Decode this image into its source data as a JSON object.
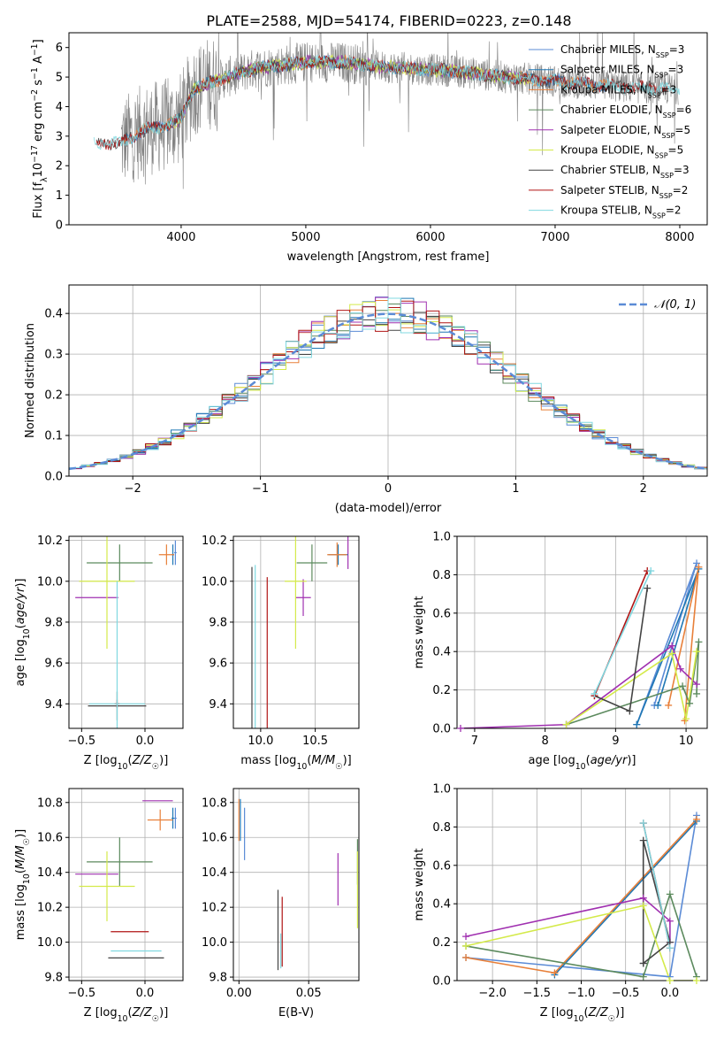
{
  "figure": {
    "title": "PLATE=2588, MJD=54174, FIBERID=0223, z=0.148"
  },
  "colors": {
    "chabrier_miles": "#5b8bd6",
    "salpeter_miles": "#1f77b4",
    "kroupa_miles": "#e8803a",
    "chabrier_elodie": "#5c8a5e",
    "salpeter_elodie": "#a030b0",
    "kroupa_elodie": "#d4ea4a",
    "chabrier_stelib": "#444444",
    "salpeter_stelib": "#b01515",
    "kroupa_stelib": "#80d8e0",
    "data_spectrum": "#808080",
    "normal_curve": "#5b8bd6",
    "grid": "#b0b0b0"
  },
  "chart_data": [
    {
      "id": "spectrum",
      "type": "line",
      "xlabel": "wavelength [Angstrom, rest frame]",
      "ylabel": "Flux [f_λ 10^-17 erg cm^-2 s^-1 A^-1]",
      "xlim": [
        3100,
        8220
      ],
      "ylim": [
        0,
        6.5
      ],
      "xticks": [
        4000,
        5000,
        6000,
        7000,
        8000
      ],
      "yticks": [
        0,
        1,
        2,
        3,
        4,
        5,
        6
      ],
      "grid": false,
      "legend_position": "top-right",
      "legend": [
        {
          "label": "Chabrier MILES, N_SSP=3",
          "color_key": "chabrier_miles"
        },
        {
          "label": "Salpeter MILES, N_SSP=3",
          "color_key": "salpeter_miles"
        },
        {
          "label": "Kroupa MILES, N_SSP=3",
          "color_key": "kroupa_miles"
        },
        {
          "label": "Chabrier ELODIE, N_SSP=6",
          "color_key": "chabrier_elodie"
        },
        {
          "label": "Salpeter ELODIE, N_SSP=5",
          "color_key": "salpeter_elodie"
        },
        {
          "label": "Kroupa ELODIE, N_SSP=5",
          "color_key": "kroupa_elodie"
        },
        {
          "label": "Chabrier STELIB, N_SSP=3",
          "color_key": "chabrier_stelib"
        },
        {
          "label": "Salpeter STELIB, N_SSP=2",
          "color_key": "salpeter_stelib"
        },
        {
          "label": "Kroupa STELIB, N_SSP=2",
          "color_key": "kroupa_stelib"
        }
      ],
      "continuum": [
        [
          3300,
          2.8
        ],
        [
          3500,
          2.75
        ],
        [
          3700,
          3.2
        ],
        [
          3900,
          3.4
        ],
        [
          4000,
          3.6
        ],
        [
          4100,
          4.6
        ],
        [
          4300,
          4.9
        ],
        [
          4600,
          5.3
        ],
        [
          4900,
          5.45
        ],
        [
          5000,
          5.5
        ],
        [
          5300,
          5.5
        ],
        [
          5600,
          5.35
        ],
        [
          5800,
          5.3
        ],
        [
          6200,
          5.2
        ],
        [
          6600,
          5.0
        ],
        [
          6900,
          4.9
        ],
        [
          7300,
          4.75
        ],
        [
          7600,
          4.65
        ],
        [
          8000,
          4.6
        ]
      ]
    },
    {
      "id": "residuals",
      "type": "histogram",
      "xlabel": "(data-model)/error",
      "ylabel": "Normed distribution",
      "xlim": [
        -2.5,
        2.5
      ],
      "ylim": [
        0,
        0.47
      ],
      "xticks": [
        -2,
        -1,
        0,
        1,
        2
      ],
      "yticks": [
        0.0,
        0.1,
        0.2,
        0.3,
        0.4
      ],
      "grid": true,
      "legend_position": "top-right",
      "legend": [
        {
          "label": "𝒩(0, 1)",
          "style": "dashed",
          "color_key": "normal_curve"
        }
      ],
      "bin_width": 0.1,
      "curve": "normal pdf, mean 0, sd 1"
    },
    {
      "id": "age_vs_Z",
      "type": "errorbar",
      "xlabel": "Z [log10(Z/Z☉)]",
      "ylabel": "age [log10(age/yr)]",
      "xlim": [
        -0.6,
        0.3
      ],
      "ylim": [
        9.28,
        10.22
      ],
      "xticks": [
        -0.5,
        0.0
      ],
      "yticks": [
        9.4,
        9.6,
        9.8,
        10.0,
        10.2
      ],
      "grid": true,
      "points": [
        {
          "model": "chabrier_miles",
          "x": 0.24,
          "y": 10.14,
          "xerr": 0.01,
          "yerr": 0.06
        },
        {
          "model": "salpeter_miles",
          "x": 0.22,
          "y": 10.13,
          "xerr": 0.01,
          "yerr": 0.05
        },
        {
          "model": "kroupa_miles",
          "x": 0.17,
          "y": 10.13,
          "xerr": 0.06,
          "yerr": 0.05
        },
        {
          "model": "chabrier_elodie",
          "x": -0.2,
          "y": 10.09,
          "xerr": 0.26,
          "yerr": 0.09
        },
        {
          "model": "salpeter_elodie",
          "x": -0.38,
          "y": 9.92,
          "xerr": 0.17,
          "yerr": 0.0
        },
        {
          "model": "kroupa_elodie",
          "x": -0.3,
          "y": 10.0,
          "xerr": 0.22,
          "yerr": 0.33
        },
        {
          "model": "chabrier_stelib",
          "x": -0.22,
          "y": 9.39,
          "xerr": 0.23,
          "yerr": 0.07
        },
        {
          "model": "salpeter_stelib",
          "x": -0.22,
          "y": 9.4,
          "xerr": 0.02,
          "yerr": 0.02
        },
        {
          "model": "kroupa_stelib",
          "x": -0.22,
          "y": 9.4,
          "xerr": 0.22,
          "yerr": 0.6
        }
      ]
    },
    {
      "id": "age_vs_mass",
      "type": "errorbar",
      "xlabel": "mass [log10(M/M☉)]",
      "ylabel": "",
      "xlim": [
        9.75,
        10.9
      ],
      "ylim": [
        9.28,
        10.22
      ],
      "xticks": [
        10.0,
        10.5
      ],
      "yticks": [
        9.4,
        9.6,
        9.8,
        10.0,
        10.2
      ],
      "grid": true,
      "points": [
        {
          "model": "salpeter_elodie",
          "x": 10.8,
          "y": 10.14,
          "xerr": 0.0,
          "yerr": 0.08
        },
        {
          "model": "salpeter_miles",
          "x": 10.71,
          "y": 10.13,
          "xerr": 0.09,
          "yerr": 0.05
        },
        {
          "model": "kroupa_miles",
          "x": 10.7,
          "y": 10.13,
          "xerr": 0.09,
          "yerr": 0.06
        },
        {
          "model": "chabrier_elodie",
          "x": 10.47,
          "y": 10.09,
          "xerr": 0.14,
          "yerr": 0.09
        },
        {
          "model": "salpeter_elodie",
          "x": 10.39,
          "y": 9.92,
          "xerr": 0.07,
          "yerr": 0.09
        },
        {
          "model": "kroupa_elodie",
          "x": 10.32,
          "y": 10.0,
          "xerr": 0.1,
          "yerr": 0.33
        },
        {
          "model": "salpeter_stelib",
          "x": 10.06,
          "y": 9.4,
          "xerr": 0.0,
          "yerr": 0.62
        },
        {
          "model": "chabrier_stelib",
          "x": 9.92,
          "y": 9.39,
          "xerr": 0.0,
          "yerr": 0.68
        },
        {
          "model": "kroupa_stelib",
          "x": 9.95,
          "y": 9.4,
          "xerr": 0.0,
          "yerr": 0.68
        }
      ]
    },
    {
      "id": "weight_vs_age",
      "type": "line",
      "xlabel": "age [log10(age/yr)]",
      "ylabel": "mass weight",
      "xlim": [
        6.75,
        10.3
      ],
      "ylim": [
        0,
        1
      ],
      "xticks": [
        7,
        8,
        9,
        10
      ],
      "yticks": [
        0.0,
        0.2,
        0.4,
        0.6,
        0.8,
        1.0
      ],
      "grid": true,
      "series": [
        {
          "model": "chabrier_miles",
          "points": [
            [
              9.3,
              0.02
            ],
            [
              10.15,
              0.86
            ],
            [
              9.55,
              0.12
            ]
          ]
        },
        {
          "model": "salpeter_miles",
          "points": [
            [
              9.3,
              0.02
            ],
            [
              10.18,
              0.83
            ],
            [
              9.6,
              0.12
            ]
          ]
        },
        {
          "model": "kroupa_miles",
          "points": [
            [
              9.75,
              0.12
            ],
            [
              10.18,
              0.84
            ],
            [
              9.98,
              0.04
            ]
          ]
        },
        {
          "model": "chabrier_elodie",
          "points": [
            [
              8.3,
              0.02
            ],
            [
              9.95,
              0.22
            ],
            [
              10.05,
              0.13
            ],
            [
              10.18,
              0.45
            ],
            [
              10.15,
              0.18
            ]
          ]
        },
        {
          "model": "salpeter_elodie",
          "points": [
            [
              6.8,
              0.0
            ],
            [
              8.3,
              0.02
            ],
            [
              9.8,
              0.43
            ],
            [
              9.92,
              0.31
            ],
            [
              10.15,
              0.23
            ]
          ]
        },
        {
          "model": "kroupa_elodie",
          "points": [
            [
              8.3,
              0.02
            ],
            [
              9.8,
              0.39
            ],
            [
              10.0,
              0.05
            ],
            [
              10.15,
              0.4
            ]
          ]
        },
        {
          "model": "chabrier_stelib",
          "points": [
            [
              8.7,
              0.17
            ],
            [
              9.2,
              0.09
            ],
            [
              9.45,
              0.73
            ]
          ]
        },
        {
          "model": "salpeter_stelib",
          "points": [
            [
              8.7,
              0.17
            ],
            [
              9.45,
              0.82
            ]
          ]
        },
        {
          "model": "kroupa_stelib",
          "points": [
            [
              8.7,
              0.18
            ],
            [
              9.5,
              0.82
            ]
          ]
        }
      ]
    },
    {
      "id": "mass_vs_Z",
      "type": "errorbar",
      "xlabel": "Z [log10(Z/Z☉)]",
      "ylabel": "mass [log10(M/M☉)]",
      "xlim": [
        -0.6,
        0.3
      ],
      "ylim": [
        9.78,
        10.88
      ],
      "xticks": [
        -0.5,
        0.0
      ],
      "yticks": [
        9.8,
        10.0,
        10.2,
        10.4,
        10.6,
        10.8
      ],
      "grid": true,
      "points": [
        {
          "model": "salpeter_elodie",
          "x": 0.1,
          "y": 10.81,
          "xerr": 0.12,
          "yerr": 0.0
        },
        {
          "model": "chabrier_miles",
          "x": 0.24,
          "y": 10.71,
          "xerr": 0.01,
          "yerr": 0.06
        },
        {
          "model": "salpeter_miles",
          "x": 0.22,
          "y": 10.71,
          "xerr": 0.01,
          "yerr": 0.06
        },
        {
          "model": "kroupa_miles",
          "x": 0.12,
          "y": 10.7,
          "xerr": 0.1,
          "yerr": 0.06
        },
        {
          "model": "chabrier_elodie",
          "x": -0.2,
          "y": 10.46,
          "xerr": 0.26,
          "yerr": 0.14
        },
        {
          "model": "salpeter_elodie",
          "x": -0.38,
          "y": 10.39,
          "xerr": 0.17,
          "yerr": 0.0
        },
        {
          "model": "kroupa_elodie",
          "x": -0.3,
          "y": 10.32,
          "xerr": 0.22,
          "yerr": 0.2
        },
        {
          "model": "salpeter_stelib",
          "x": -0.12,
          "y": 10.06,
          "xerr": 0.15,
          "yerr": 0.0
        },
        {
          "model": "kroupa_stelib",
          "x": -0.07,
          "y": 9.95,
          "xerr": 0.2,
          "yerr": 0.0
        },
        {
          "model": "chabrier_stelib",
          "x": -0.07,
          "y": 9.91,
          "xerr": 0.22,
          "yerr": 0.0
        }
      ]
    },
    {
      "id": "mass_vs_ebv",
      "type": "errorbar",
      "xlabel": "E(B-V)",
      "ylabel": "",
      "xlim": [
        -0.004,
        0.086
      ],
      "ylim": [
        9.78,
        10.88
      ],
      "xticks": [
        0.0,
        0.05
      ],
      "yticks": [
        9.8,
        10.0,
        10.2,
        10.4,
        10.6,
        10.8
      ],
      "grid": true,
      "points": [
        {
          "model": "chabrier_miles",
          "x": 0.004,
          "y": 10.62,
          "xerr": 0.0,
          "yerr": 0.15
        },
        {
          "model": "kroupa_miles",
          "x": 0.0,
          "y": 10.7,
          "xerr": 0.0,
          "yerr": 0.12
        },
        {
          "model": "salpeter_miles",
          "x": 0.001,
          "y": 10.7,
          "xerr": 0.0,
          "yerr": 0.12
        },
        {
          "model": "chabrier_elodie",
          "x": 0.085,
          "y": 10.46,
          "xerr": 0.0,
          "yerr": 0.13
        },
        {
          "model": "salpeter_elodie",
          "x": 0.071,
          "y": 10.36,
          "xerr": 0.0,
          "yerr": 0.15
        },
        {
          "model": "kroupa_elodie",
          "x": 0.085,
          "y": 10.3,
          "xerr": 0.0,
          "yerr": 0.22
        },
        {
          "model": "chabrier_stelib",
          "x": 0.028,
          "y": 10.07,
          "xerr": 0.0,
          "yerr": 0.23
        },
        {
          "model": "salpeter_stelib",
          "x": 0.031,
          "y": 10.06,
          "xerr": 0.0,
          "yerr": 0.2
        },
        {
          "model": "kroupa_stelib",
          "x": 0.03,
          "y": 9.95,
          "xerr": 0.0,
          "yerr": 0.1
        }
      ]
    },
    {
      "id": "weight_vs_Z",
      "type": "line",
      "xlabel": "Z [log10(Z/Z☉)]",
      "ylabel": "mass weight",
      "xlim": [
        -2.4,
        0.42
      ],
      "ylim": [
        0,
        1
      ],
      "xticks": [
        -2.0,
        -1.5,
        -1.0,
        -0.5,
        0.0
      ],
      "yticks": [
        0.0,
        0.2,
        0.4,
        0.6,
        0.8,
        1.0
      ],
      "grid": true,
      "series": [
        {
          "model": "chabrier_miles",
          "points": [
            [
              -2.3,
              0.12
            ],
            [
              0.0,
              0.02
            ],
            [
              0.3,
              0.86
            ]
          ]
        },
        {
          "model": "salpeter_miles",
          "points": [
            [
              -1.3,
              0.03
            ],
            [
              0.3,
              0.83
            ]
          ]
        },
        {
          "model": "kroupa_miles",
          "points": [
            [
              -2.3,
              0.12
            ],
            [
              -1.3,
              0.04
            ],
            [
              0.3,
              0.84
            ]
          ]
        },
        {
          "model": "chabrier_elodie",
          "points": [
            [
              -2.3,
              0.18
            ],
            [
              -0.3,
              0.02
            ],
            [
              0.0,
              0.45
            ],
            [
              0.3,
              0.02
            ]
          ]
        },
        {
          "model": "salpeter_elodie",
          "points": [
            [
              -2.3,
              0.23
            ],
            [
              -0.3,
              0.43
            ],
            [
              0.0,
              0.31
            ],
            [
              0.0,
              0.2
            ]
          ]
        },
        {
          "model": "kroupa_elodie",
          "points": [
            [
              -2.3,
              0.18
            ],
            [
              -0.3,
              0.39
            ],
            [
              0.0,
              0.0
            ],
            [
              0.3,
              0.0
            ]
          ]
        },
        {
          "model": "chabrier_stelib",
          "points": [
            [
              -0.3,
              0.09
            ],
            [
              0.0,
              0.2
            ],
            [
              -0.3,
              0.73
            ],
            [
              -0.3,
              0.09
            ]
          ]
        },
        {
          "model": "salpeter_stelib",
          "points": [
            [
              -0.3,
              0.82
            ],
            [
              0.0,
              0.17
            ]
          ]
        },
        {
          "model": "kroupa_stelib",
          "points": [
            [
              -0.3,
              0.82
            ],
            [
              0.0,
              0.17
            ]
          ]
        }
      ]
    }
  ]
}
